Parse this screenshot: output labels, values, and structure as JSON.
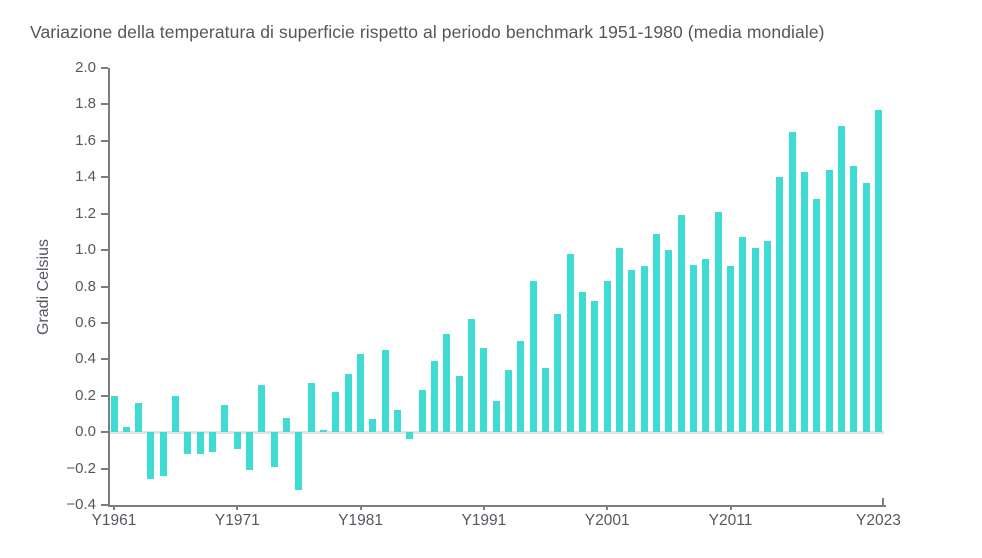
{
  "page": {
    "background_color": "#FFFFFF"
  },
  "colors": {
    "bar": "#3EDCD2",
    "axis_line": "#7D7D7D",
    "zero_line": "#E2E2E2",
    "title_text": "#54565A",
    "tick_text": "#55585E"
  },
  "chart_data": {
    "type": "bar",
    "title": "Variazione della temperatura di superficie rispetto al periodo benchmark 1951-1980 (media mondiale)",
    "xlabel": "",
    "ylabel": "Gradi Celsius",
    "ylim": [
      -0.4,
      2.0
    ],
    "ytick_step": 0.2,
    "grid": false,
    "legend": null,
    "bar_color": "#3EDCD2",
    "yticks": [
      2.0,
      1.8,
      1.6,
      1.4,
      1.2,
      1.0,
      0.8,
      0.6,
      0.4,
      0.2,
      0.0,
      -0.2,
      -0.4
    ],
    "ytick_labels": [
      "2.0",
      "1.8",
      "1.6",
      "1.4",
      "1.2",
      "1.0",
      "0.8",
      "0.6",
      "0.4",
      "0.2",
      "0.0",
      "−0.2",
      "−0.4"
    ],
    "xticks": [
      {
        "year": 1961,
        "label": "Y1961"
      },
      {
        "year": 1971,
        "label": "Y1971"
      },
      {
        "year": 1981,
        "label": "Y1981"
      },
      {
        "year": 1991,
        "label": "Y1991"
      },
      {
        "year": 2001,
        "label": "Y2001"
      },
      {
        "year": 2011,
        "label": "Y2011"
      },
      {
        "year": 2023,
        "label": "Y2023"
      }
    ],
    "categories": [
      1961,
      1962,
      1963,
      1964,
      1965,
      1966,
      1967,
      1968,
      1969,
      1970,
      1971,
      1972,
      1973,
      1974,
      1975,
      1976,
      1977,
      1978,
      1979,
      1980,
      1981,
      1982,
      1983,
      1984,
      1985,
      1986,
      1987,
      1988,
      1989,
      1990,
      1991,
      1992,
      1993,
      1994,
      1995,
      1996,
      1997,
      1998,
      1999,
      2000,
      2001,
      2002,
      2003,
      2004,
      2005,
      2006,
      2007,
      2008,
      2009,
      2010,
      2011,
      2012,
      2013,
      2014,
      2015,
      2016,
      2017,
      2018,
      2019,
      2020,
      2021,
      2022,
      2023
    ],
    "values": [
      0.2,
      0.03,
      0.16,
      -0.26,
      -0.24,
      0.2,
      -0.12,
      -0.12,
      -0.11,
      0.15,
      -0.09,
      -0.21,
      0.26,
      -0.19,
      0.08,
      -0.32,
      0.27,
      0.01,
      0.22,
      0.32,
      0.43,
      0.07,
      0.45,
      0.12,
      -0.04,
      0.23,
      0.39,
      0.54,
      0.31,
      0.62,
      0.46,
      0.17,
      0.34,
      0.5,
      0.83,
      0.35,
      0.65,
      0.98,
      0.77,
      0.72,
      0.83,
      1.01,
      0.89,
      0.91,
      1.09,
      1.0,
      1.19,
      0.92,
      0.95,
      1.21,
      0.91,
      1.07,
      1.01,
      1.05,
      1.4,
      1.65,
      1.43,
      1.28,
      1.44,
      1.68,
      1.46,
      1.37,
      1.77
    ]
  }
}
